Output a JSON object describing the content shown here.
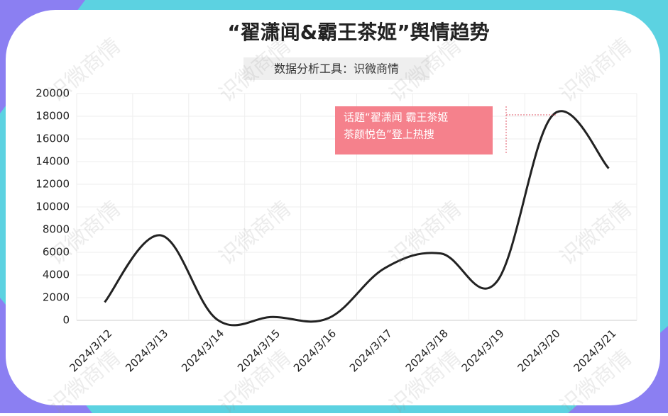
{
  "chart_data": {
    "type": "line",
    "title": "“翟潇闻&霸王茶姬”舆情趋势",
    "subtitle": "数据分析工具：识微商情",
    "categories": [
      "2024/3/12",
      "2024/3/13",
      "2024/3/14",
      "2024/3/15",
      "2024/3/16",
      "2024/3/17",
      "2024/3/18",
      "2024/3/19",
      "2024/3/20",
      "2024/3/21"
    ],
    "values": [
      1600,
      7500,
      100,
      300,
      200,
      4600,
      5900,
      3400,
      18100,
      13400
    ],
    "color": "#222222",
    "ylim": [
      0,
      20000
    ],
    "yticks": [
      0,
      2000,
      4000,
      6000,
      8000,
      10000,
      12000,
      14000,
      16000,
      18000,
      20000
    ],
    "grid": true,
    "annotation": [
      "话题“翟潇闻 霸王茶姬",
      "茶颜悦色”登上热搜"
    ],
    "watermark": "识微商情"
  }
}
